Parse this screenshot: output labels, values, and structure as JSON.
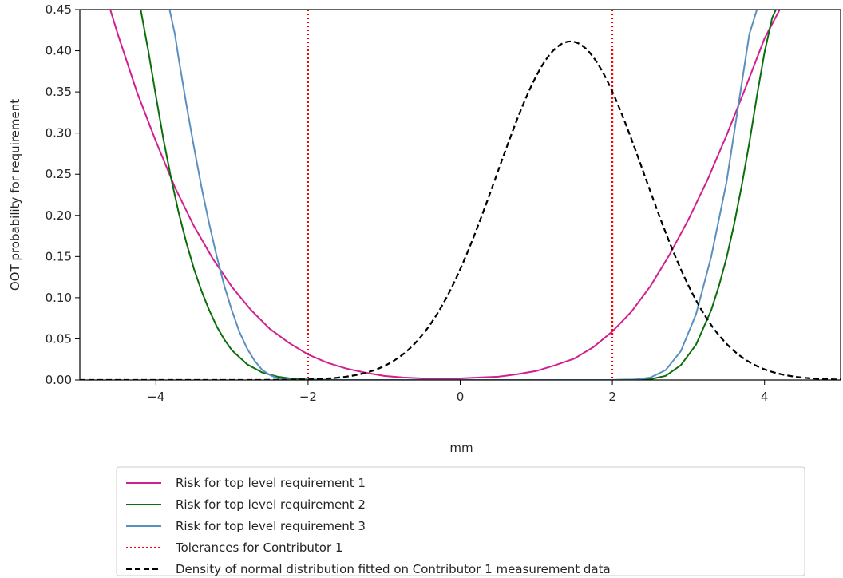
{
  "chart_data": {
    "type": "line",
    "title": "",
    "xlabel": "mm",
    "ylabel": "OOT probability for requirement",
    "xlim": [
      -5,
      5
    ],
    "ylim": [
      0,
      0.45
    ],
    "grid": false,
    "legend_placement": "below",
    "x_ticks": [
      -4,
      -2,
      0,
      2,
      4
    ],
    "x_tick_labels": [
      "−4",
      "−2",
      "0",
      "2",
      "4"
    ],
    "y_ticks": [
      0,
      0.05,
      0.1,
      0.15,
      0.2,
      0.25,
      0.3,
      0.35,
      0.4,
      0.45
    ],
    "y_tick_labels": [
      "0.00",
      "0.05",
      "0.10",
      "0.15",
      "0.20",
      "0.25",
      "0.30",
      "0.35",
      "0.40",
      "0.45"
    ],
    "series": [
      {
        "name": "Risk for top level requirement 1",
        "color": "#d02090",
        "style": "solid",
        "x": [
          -4.6,
          -4.5,
          -4.25,
          -4.0,
          -3.75,
          -3.5,
          -3.25,
          -3.0,
          -2.75,
          -2.5,
          -2.25,
          -2.0,
          -1.75,
          -1.5,
          -1.25,
          -1.0,
          -0.75,
          -0.5,
          -0.25,
          0.0,
          0.25,
          0.5,
          0.75,
          1.0,
          1.25,
          1.5,
          1.75,
          2.0,
          2.25,
          2.5,
          2.75,
          3.0,
          3.25,
          3.5,
          3.75,
          4.0,
          4.2
        ],
        "y": [
          0.45,
          0.42,
          0.35,
          0.29,
          0.234,
          0.187,
          0.147,
          0.113,
          0.085,
          0.062,
          0.045,
          0.031,
          0.021,
          0.014,
          0.009,
          0.005,
          0.003,
          0.002,
          0.002,
          0.002,
          0.003,
          0.004,
          0.007,
          0.011,
          0.018,
          0.026,
          0.04,
          0.059,
          0.083,
          0.114,
          0.152,
          0.195,
          0.243,
          0.297,
          0.355,
          0.415,
          0.45
        ]
      },
      {
        "name": "Risk for top level requirement 2",
        "color": "#0b6e0b",
        "style": "solid",
        "x": [
          -4.2,
          -4.1,
          -4.0,
          -3.9,
          -3.8,
          -3.7,
          -3.6,
          -3.5,
          -3.4,
          -3.3,
          -3.2,
          -3.1,
          -3.0,
          -2.8,
          -2.6,
          -2.4,
          -2.2,
          -2.0,
          -1.5,
          -1.0,
          0.0,
          1.0,
          2.0,
          2.5,
          2.7,
          2.9,
          3.1,
          3.3,
          3.4,
          3.5,
          3.6,
          3.7,
          3.8,
          3.9,
          4.0,
          4.1,
          4.15
        ],
        "y": [
          0.45,
          0.4,
          0.345,
          0.292,
          0.245,
          0.203,
          0.167,
          0.135,
          0.108,
          0.085,
          0.065,
          0.049,
          0.036,
          0.019,
          0.009,
          0.004,
          0.0015,
          0.0005,
          0.0,
          0.0,
          0.0,
          0.0,
          0.0,
          0.001,
          0.005,
          0.018,
          0.043,
          0.085,
          0.114,
          0.148,
          0.189,
          0.236,
          0.288,
          0.345,
          0.398,
          0.44,
          0.45
        ]
      },
      {
        "name": "Risk for top level requirement 3",
        "color": "#5a8fc0",
        "style": "solid",
        "x": [
          -3.82,
          -3.75,
          -3.7,
          -3.6,
          -3.5,
          -3.4,
          -3.3,
          -3.2,
          -3.1,
          -3.0,
          -2.9,
          -2.8,
          -2.7,
          -2.6,
          -2.5,
          -2.4,
          -2.3,
          -2.2,
          -2.0,
          -1.0,
          0.0,
          1.0,
          2.0,
          2.3,
          2.5,
          2.7,
          2.9,
          3.1,
          3.3,
          3.5,
          3.6,
          3.7,
          3.8,
          3.9
        ],
        "y": [
          0.45,
          0.42,
          0.39,
          0.335,
          0.283,
          0.234,
          0.19,
          0.15,
          0.114,
          0.084,
          0.058,
          0.038,
          0.023,
          0.012,
          0.006,
          0.002,
          0.001,
          0.0,
          0.0,
          0.0,
          0.0,
          0.0,
          0.0,
          0.0005,
          0.003,
          0.012,
          0.035,
          0.08,
          0.15,
          0.24,
          0.3,
          0.36,
          0.42,
          0.45
        ]
      },
      {
        "name": "Tolerances for Contributor 1",
        "color": "#ff0000",
        "style": "dotted",
        "vlines": [
          -2,
          2
        ]
      },
      {
        "name": "Density of normal distribution fitted on Contributor 1 measurement data",
        "color": "#000000",
        "style": "dashed",
        "density": {
          "mean": 1.45,
          "std": 0.97
        }
      }
    ]
  }
}
